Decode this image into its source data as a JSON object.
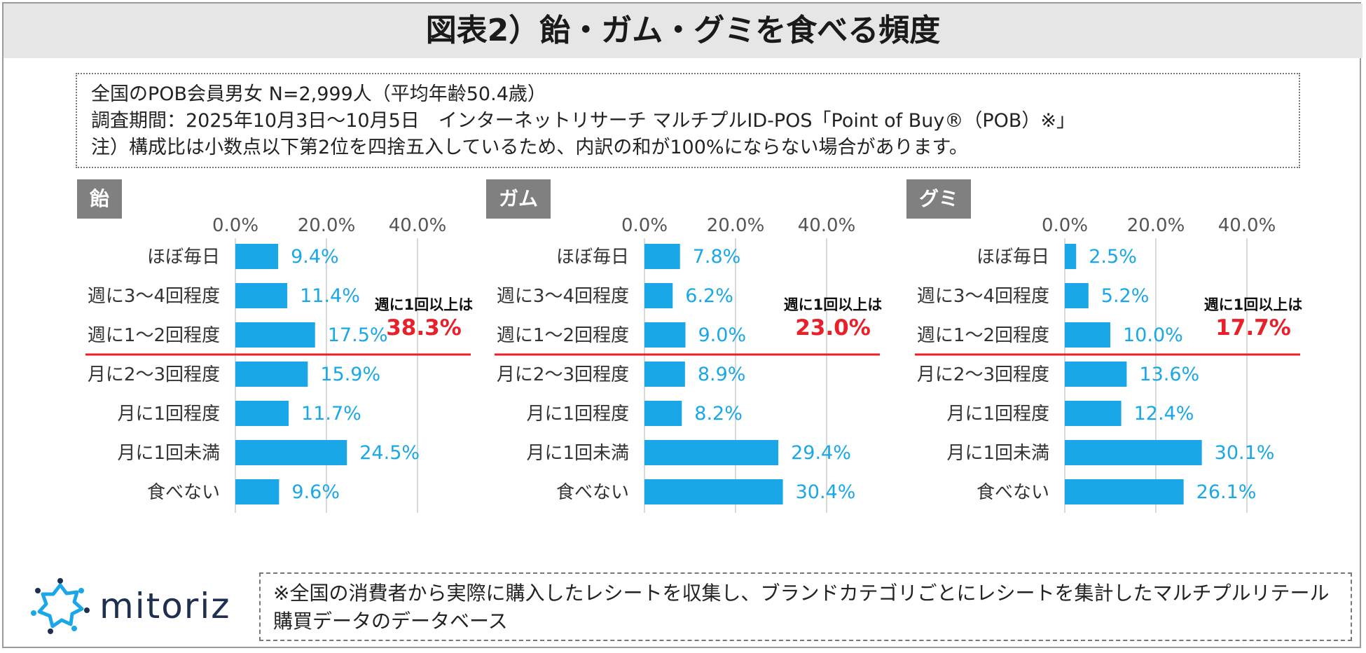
{
  "title": "図表2）飴・ガム・グミを食べる頻度",
  "info": {
    "line1": "全国のPOB会員男女 N=2,999人（平均年齢50.4歳）",
    "line2": "調査期間：2025年10月3日～10月5日　インターネットリサーチ マルチプルID-POS「Point of Buy®（POB）※」",
    "line3": "注）構成比は小数点以下第2位を四捨五入しているため、内訳の和が100%にならない場合があります。"
  },
  "colors": {
    "bar": "#1aa7e8",
    "value_text": "#1aa7e8",
    "divider": "#e8202a",
    "highlight": "#e8202a",
    "grid": "#d9d9d9"
  },
  "chart_data": [
    {
      "type": "bar",
      "orientation": "horizontal",
      "label": "飴",
      "categories": [
        "ほぼ毎日",
        "週に3～4回程度",
        "週に1～2回程度",
        "月に2～3回程度",
        "月に1回程度",
        "月に1回未満",
        "食べない"
      ],
      "values": [
        9.4,
        11.4,
        17.5,
        15.9,
        11.7,
        24.5,
        9.6
      ],
      "value_labels": [
        "9.4%",
        "11.4%",
        "17.5%",
        "15.9%",
        "11.7%",
        "24.5%",
        "9.6%"
      ],
      "xlim": [
        0,
        40
      ],
      "ticks": [
        "0.0%",
        "20.0%",
        "40.0%"
      ],
      "summary_label": "週に1回以上は",
      "summary_value": "38.3%"
    },
    {
      "type": "bar",
      "orientation": "horizontal",
      "label": "ガム",
      "categories": [
        "ほぼ毎日",
        "週に3～4回程度",
        "週に1～2回程度",
        "月に2～3回程度",
        "月に1回程度",
        "月に1回未満",
        "食べない"
      ],
      "values": [
        7.8,
        6.2,
        9.0,
        8.9,
        8.2,
        29.4,
        30.4
      ],
      "value_labels": [
        "7.8%",
        "6.2%",
        "9.0%",
        "8.9%",
        "8.2%",
        "29.4%",
        "30.4%"
      ],
      "xlim": [
        0,
        40
      ],
      "ticks": [
        "0.0%",
        "20.0%",
        "40.0%"
      ],
      "summary_label": "週に1回以上は",
      "summary_value": "23.0%"
    },
    {
      "type": "bar",
      "orientation": "horizontal",
      "label": "グミ",
      "categories": [
        "ほぼ毎日",
        "週に3～4回程度",
        "週に1～2回程度",
        "月に2～3回程度",
        "月に1回程度",
        "月に1回未満",
        "食べない"
      ],
      "values": [
        2.5,
        5.2,
        10.0,
        13.6,
        12.4,
        30.1,
        26.1
      ],
      "value_labels": [
        "2.5%",
        "5.2%",
        "10.0%",
        "13.6%",
        "12.4%",
        "30.1%",
        "26.1%"
      ],
      "xlim": [
        0,
        40
      ],
      "ticks": [
        "0.0%",
        "20.0%",
        "40.0%"
      ],
      "summary_label": "週に1回以上は",
      "summary_value": "17.7%"
    }
  ],
  "footer": {
    "logo_text": "mitoriz",
    "note": "※全国の消費者から実際に購入したレシートを収集し、ブランドカテゴリごとにレシートを集計したマルチプルリテール購買データのデータベース"
  }
}
